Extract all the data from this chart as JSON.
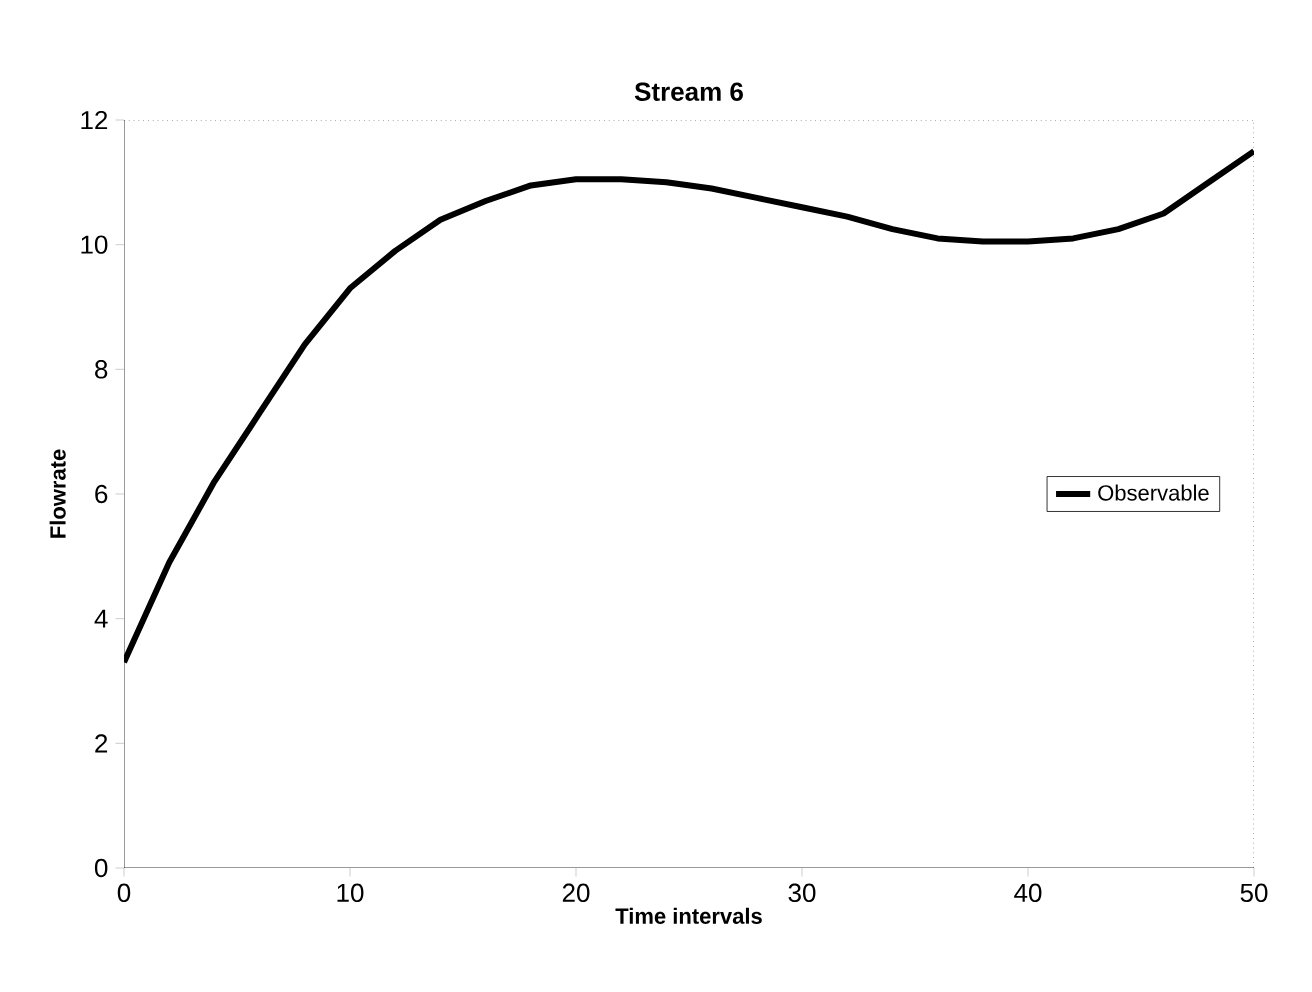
{
  "chart_data": {
    "type": "line",
    "title": "Stream 6",
    "xlabel": "Time intervals",
    "ylabel": "Flowrate",
    "xlim": [
      0,
      50
    ],
    "xticks": [
      0,
      10,
      20,
      30,
      40,
      50
    ],
    "ylim": [
      0,
      12
    ],
    "yticks": [
      0,
      2,
      4,
      6,
      8,
      10,
      12
    ],
    "legend": "right",
    "grid": false,
    "marker": "none",
    "line_style": "solid",
    "series": [
      {
        "name": "Observable",
        "color": "#000000",
        "x": [
          0,
          2,
          4,
          6,
          8,
          10,
          12,
          14,
          16,
          18,
          20,
          22,
          24,
          26,
          28,
          30,
          32,
          34,
          36,
          38,
          40,
          42,
          44,
          46,
          48,
          50
        ],
        "values": [
          3.3,
          4.9,
          6.2,
          7.3,
          8.4,
          9.3,
          9.9,
          10.4,
          10.7,
          10.95,
          11.05,
          11.05,
          11.0,
          10.9,
          10.75,
          10.6,
          10.45,
          10.25,
          10.1,
          10.05,
          10.05,
          10.1,
          10.25,
          10.5,
          11.0,
          11.5
        ]
      }
    ]
  }
}
